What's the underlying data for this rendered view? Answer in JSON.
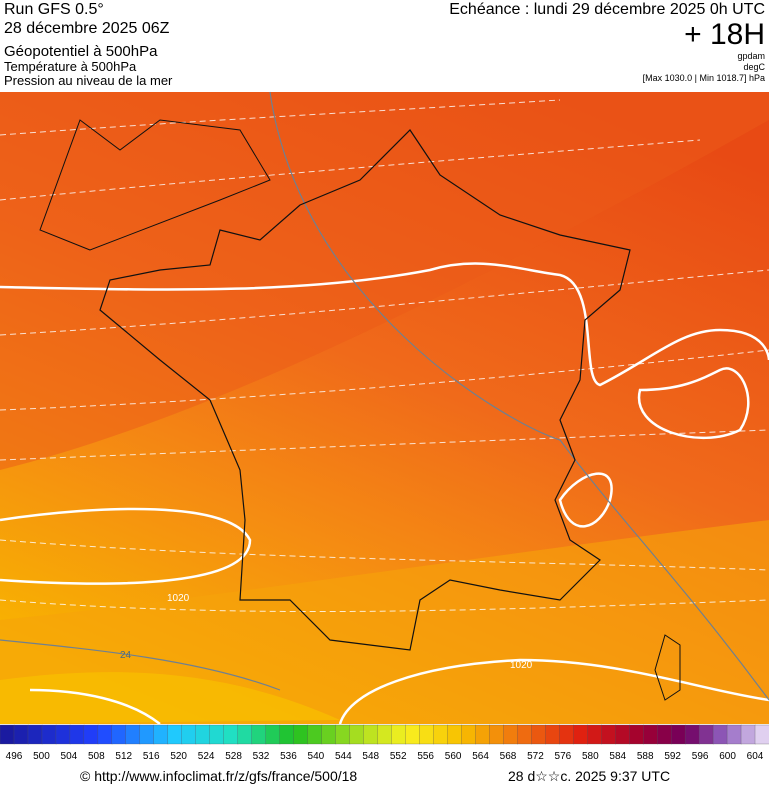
{
  "header": {
    "title": "Run GFS 0.5°",
    "run": "28 décembre 2025 06Z",
    "field": "Géopotentiel à 500hPa",
    "temperature": "Température à 500hPa",
    "pressure": "Pression au niveau de la mer",
    "valid_time": "Echéance : lundi 29 décembre 2025 0h UTC",
    "lead": "+ 18H",
    "unit_geo": "gpdam",
    "unit_temp": "degC",
    "range": "[Max 1030.0 | Min 1018.7] hPa"
  },
  "map": {
    "contour_labels": [
      "1020",
      "1020",
      "24"
    ]
  },
  "colorbar": {
    "labels": [
      "496",
      "500",
      "504",
      "508",
      "512",
      "516",
      "520",
      "524",
      "528",
      "532",
      "536",
      "540",
      "544",
      "548",
      "552",
      "556",
      "560",
      "564",
      "568",
      "572",
      "576",
      "580",
      "584",
      "588",
      "592",
      "596",
      "600",
      "604"
    ]
  },
  "footer": {
    "source": "© http://www.infoclimat.fr/z/gfs/france/500/18",
    "generated": "28 d☆☆c. 2025  9:37 UTC"
  }
}
